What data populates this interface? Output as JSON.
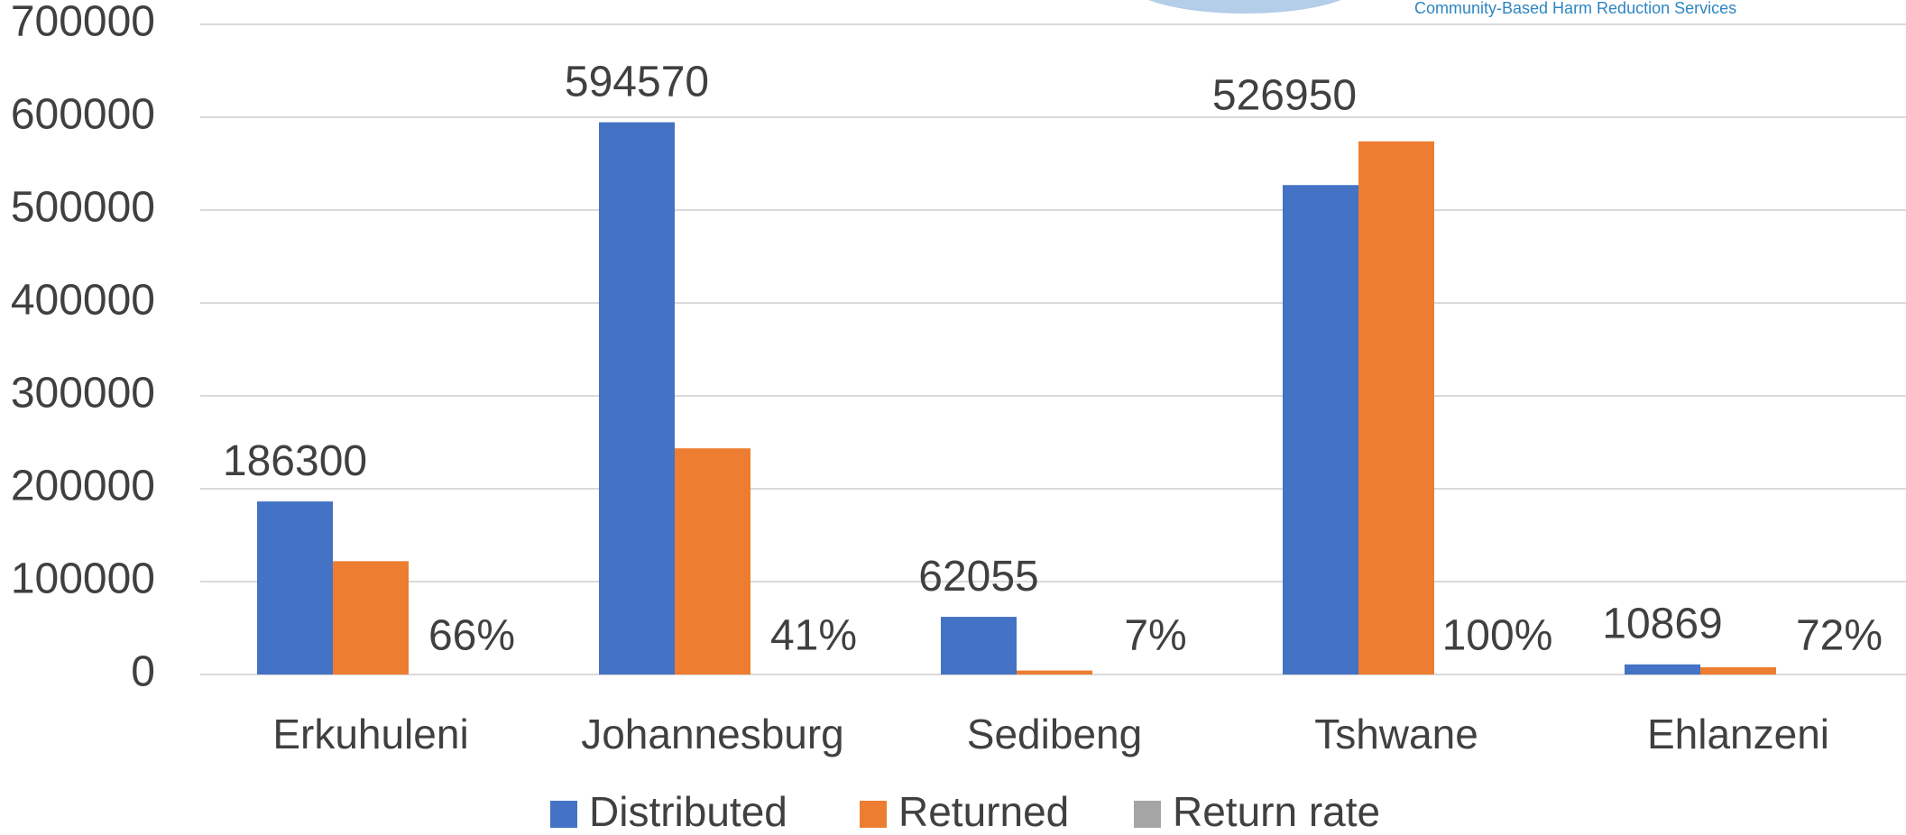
{
  "logo_text": "Community-Based Harm Reduction Services",
  "chart_data": {
    "type": "bar",
    "categories": [
      "Erkuhuleni",
      "Johannesburg",
      "Sedibeng",
      "Tshwane",
      "Ehlanzeni"
    ],
    "series": [
      {
        "name": "Distributed",
        "color": "#4472c4",
        "values": [
          186300,
          594570,
          62055,
          526950,
          10869
        ]
      },
      {
        "name": "Returned",
        "color": "#ed7d31",
        "values": [
          122000,
          243500,
          4300,
          574000,
          7800
        ]
      },
      {
        "name": "Return rate",
        "color": "#a5a5a5",
        "values": [
          0.66,
          0.41,
          0.07,
          1.0,
          0.72
        ],
        "value_labels": [
          "66%",
          "41%",
          "7%",
          "100%",
          "72%"
        ]
      }
    ],
    "ylim": [
      0,
      700000
    ],
    "yticks": [
      0,
      100000,
      200000,
      300000,
      400000,
      500000,
      600000,
      700000
    ],
    "grid": true,
    "legend": "bottom"
  }
}
